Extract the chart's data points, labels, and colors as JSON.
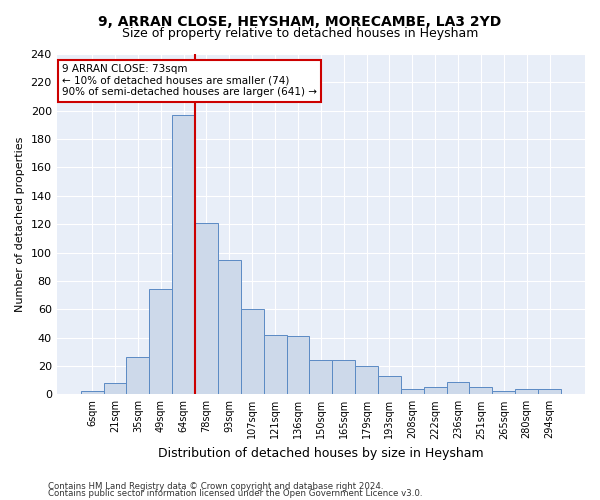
{
  "title": "9, ARRAN CLOSE, HEYSHAM, MORECAMBE, LA3 2YD",
  "subtitle": "Size of property relative to detached houses in Heysham",
  "xlabel": "Distribution of detached houses by size in Heysham",
  "ylabel": "Number of detached properties",
  "categories": [
    "6sqm",
    "21sqm",
    "35sqm",
    "49sqm",
    "64sqm",
    "78sqm",
    "93sqm",
    "107sqm",
    "121sqm",
    "136sqm",
    "150sqm",
    "165sqm",
    "179sqm",
    "193sqm",
    "208sqm",
    "222sqm",
    "236sqm",
    "251sqm",
    "265sqm",
    "280sqm",
    "294sqm"
  ],
  "values": [
    2,
    8,
    26,
    74,
    197,
    121,
    95,
    60,
    42,
    41,
    24,
    24,
    20,
    13,
    4,
    5,
    9,
    5,
    2,
    4,
    4
  ],
  "bar_color": "#cdd9ea",
  "bar_edge_color": "#5b8ac4",
  "vline_x_index": 4,
  "vline_color": "#cc0000",
  "annotation_text": "9 ARRAN CLOSE: 73sqm\n← 10% of detached houses are smaller (74)\n90% of semi-detached houses are larger (641) →",
  "annotation_box_color": "#ffffff",
  "annotation_box_edge": "#cc0000",
  "ylim": [
    0,
    240
  ],
  "yticks": [
    0,
    20,
    40,
    60,
    80,
    100,
    120,
    140,
    160,
    180,
    200,
    220,
    240
  ],
  "footer1": "Contains HM Land Registry data © Crown copyright and database right 2024.",
  "footer2": "Contains public sector information licensed under the Open Government Licence v3.0.",
  "bg_color": "#ffffff",
  "plot_bg_color": "#e8eef8",
  "grid_color": "#ffffff",
  "title_fontsize": 10,
  "subtitle_fontsize": 9
}
